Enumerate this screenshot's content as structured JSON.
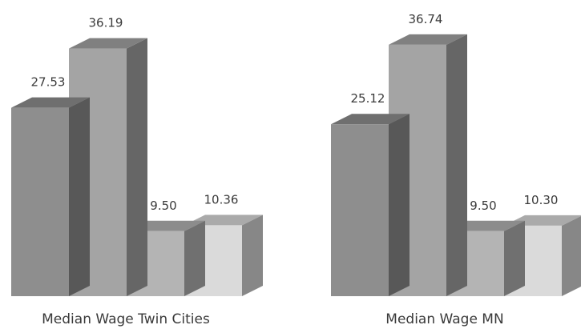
{
  "chart_data": [
    {
      "type": "bar",
      "title": "",
      "category_label": "Median Wage Twin Cities",
      "values": [
        27.53,
        36.19,
        9.5,
        10.36
      ],
      "value_labels": [
        "27.53",
        "36.19",
        "9.50",
        "10.36"
      ],
      "bar_colors": [
        "#8e8e8e",
        "#a4a4a4",
        "#b4b4b4",
        "#dadada"
      ]
    },
    {
      "type": "bar",
      "title": "",
      "category_label": "Median Wage MN",
      "values": [
        25.12,
        36.74,
        9.5,
        10.3
      ],
      "value_labels": [
        "25.12",
        "36.74",
        "9.50",
        "10.30"
      ],
      "bar_colors": [
        "#8e8e8e",
        "#a4a4a4",
        "#b4b4b4",
        "#dadada"
      ]
    }
  ]
}
